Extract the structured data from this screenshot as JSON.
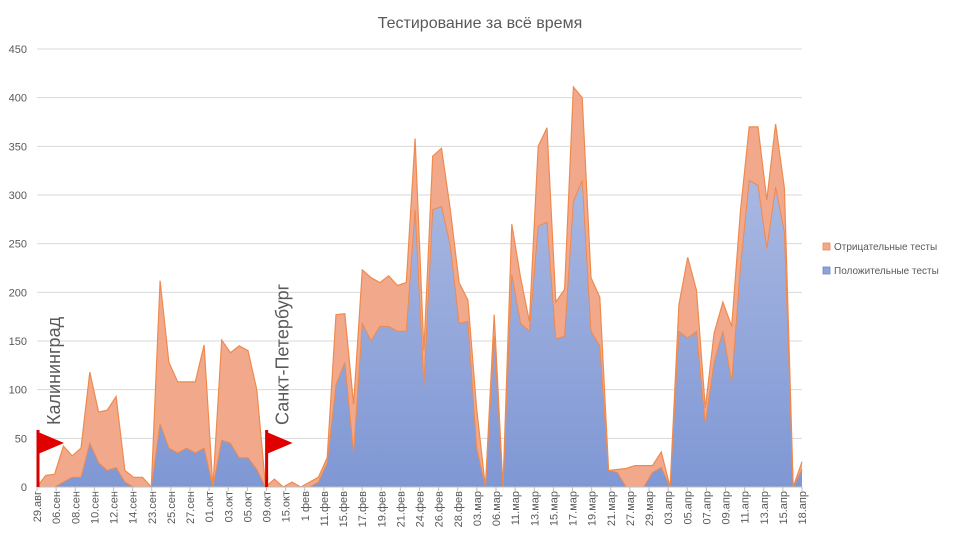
{
  "chart_data": {
    "type": "area",
    "stacked": true,
    "title": "Тестирование  за всё время",
    "xlabel": "",
    "ylabel": "",
    "ylim": [
      0,
      450
    ],
    "yticks": [
      0,
      50,
      100,
      150,
      200,
      250,
      300,
      350,
      400,
      450
    ],
    "grid": true,
    "legend_position": "right",
    "x_tick_labels": [
      "29.авг",
      "06.сен",
      "08.сен",
      "10.сен",
      "12.сен",
      "14.сен",
      "23.сен",
      "25.сен",
      "27.сен",
      "01.окт",
      "03.окт",
      "05.окт",
      "09.окт",
      "15.окт",
      "1 фев",
      "11.фев",
      "15.фев",
      "17.фев",
      "19.фев",
      "21.фев",
      "24.фев",
      "26.фев",
      "28.фев",
      "03.мар",
      "06.мар",
      "11.мар",
      "13.мар",
      "15.мар",
      "17.мар",
      "19.мар",
      "21.мар",
      "27.мар",
      "29.мар",
      "03.апр",
      "05.апр",
      "07.апр",
      "09.апр",
      "11.апр",
      "13.апр",
      "15.апр",
      "18.апр"
    ],
    "series": [
      {
        "name": "Положительные тесты",
        "color": "#8fa3d8",
        "line_color": "#6f86c9",
        "values": [
          0,
          0,
          0,
          5,
          10,
          10,
          45,
          25,
          17,
          20,
          5,
          0,
          0,
          0,
          65,
          40,
          35,
          40,
          35,
          40,
          0,
          48,
          45,
          30,
          30,
          18,
          0,
          0,
          0,
          0,
          0,
          0,
          5,
          25,
          105,
          128,
          35,
          168,
          150,
          165,
          165,
          160,
          160,
          285,
          105,
          285,
          288,
          248,
          168,
          170,
          40,
          0,
          155,
          0,
          218,
          168,
          160,
          268,
          272,
          152,
          155,
          293,
          315,
          160,
          145,
          17,
          15,
          0,
          0,
          0,
          15,
          20,
          0,
          160,
          153,
          160,
          65,
          128,
          160,
          108,
          225,
          315,
          310,
          245,
          308,
          262,
          0,
          18
        ]
      },
      {
        "name": "Отрицательные тесты",
        "color": "#f2a98b",
        "line_color": "#ee8a4e",
        "values": [
          0,
          12,
          13,
          37,
          22,
          30,
          73,
          52,
          62,
          73,
          12,
          10,
          10,
          0,
          147,
          88,
          73,
          68,
          73,
          106,
          0,
          103,
          93,
          115,
          110,
          82,
          0,
          8,
          0,
          5,
          0,
          5,
          5,
          5,
          72,
          50,
          50,
          55,
          65,
          45,
          52,
          47,
          50,
          73,
          35,
          55,
          60,
          37,
          42,
          22,
          40,
          0,
          22,
          0,
          52,
          47,
          10,
          82,
          97,
          38,
          48,
          118,
          85,
          55,
          50,
          0,
          3,
          19,
          22,
          22,
          7,
          16,
          0,
          27,
          83,
          42,
          16,
          30,
          30,
          57,
          58,
          55,
          60,
          50,
          65,
          45,
          0,
          8
        ]
      }
    ],
    "annotations": [
      {
        "text": "Калининград",
        "x_index": 0
      },
      {
        "text": "Санкт-Петербург",
        "x_index": 26
      }
    ]
  }
}
